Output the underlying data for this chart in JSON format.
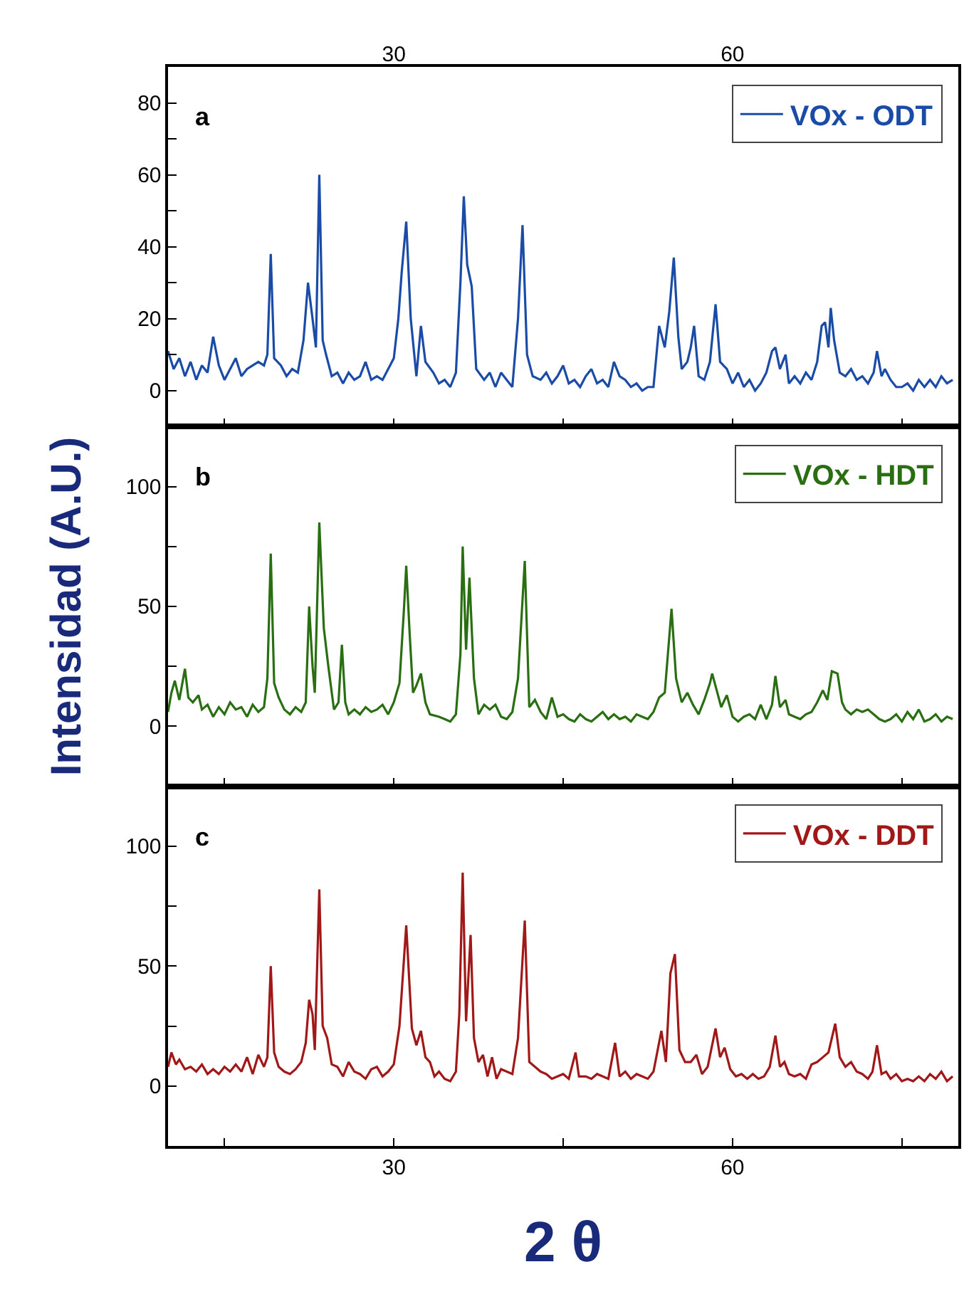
{
  "chart_data": [
    {
      "type": "line",
      "annotations": [
        "a"
      ],
      "legend": "top right",
      "grid": false,
      "tick_labels": "y",
      "xlim": [
        10,
        80
      ],
      "xticks": [
        {
          "value": 15,
          "label": null
        },
        {
          "value": 30,
          "label": null
        },
        {
          "value": 45,
          "label": null
        },
        {
          "value": 60,
          "label": null
        },
        {
          "value": 75,
          "label": null
        }
      ],
      "x2lim": [
        10,
        80
      ],
      "x2ticks": [
        30,
        60
      ],
      "ylim": [
        -10,
        90
      ],
      "yticks": [
        0,
        {
          "value": 10,
          "label": null
        },
        20,
        {
          "value": 30,
          "label": null
        },
        40,
        {
          "value": 50,
          "label": null
        },
        60,
        {
          "value": 70,
          "label": null
        },
        80
      ],
      "series": [
        {
          "name": "VOx - ODT",
          "color": "#1a4ba6",
          "x": [
            10,
            10.5,
            11,
            11.5,
            12,
            12.5,
            13,
            13.5,
            14,
            14.5,
            15,
            15.5,
            16,
            16.5,
            17,
            17.5,
            18,
            18.5,
            18.8,
            19.1,
            19.4,
            20,
            20.5,
            21,
            21.5,
            22,
            22.4,
            22.8,
            23.1,
            23.4,
            23.7,
            24,
            24.5,
            25,
            25.5,
            26,
            26.5,
            27,
            27.5,
            28,
            28.5,
            29,
            29.5,
            30,
            30.4,
            30.7,
            31.1,
            31.5,
            32,
            32.4,
            32.8,
            33.5,
            34,
            34.5,
            35,
            35.5,
            35.9,
            36.2,
            36.5,
            36.9,
            37.3,
            38,
            38.5,
            39,
            39.5,
            40,
            40.5,
            41,
            41.4,
            41.8,
            42.3,
            43,
            43.5,
            44,
            44.5,
            45,
            45.5,
            46,
            46.5,
            47,
            47.5,
            48,
            48.5,
            49,
            49.5,
            50,
            50.5,
            51,
            51.5,
            52,
            52.5,
            53,
            53.5,
            54,
            54.4,
            54.8,
            55.2,
            55.5,
            56,
            56.3,
            56.6,
            57,
            57.5,
            58,
            58.5,
            58.9,
            59.5,
            60,
            60.5,
            61,
            61.5,
            62,
            62.5,
            63,
            63.5,
            63.8,
            64.2,
            64.7,
            65,
            65.5,
            66,
            66.5,
            67,
            67.5,
            67.9,
            68.2,
            68.5,
            68.7,
            69,
            69.5,
            70,
            70.5,
            71,
            71.5,
            72,
            72.5,
            72.8,
            73.2,
            73.5,
            74,
            74.5,
            75,
            75.5,
            76,
            76.5,
            77,
            77.5,
            78,
            78.5,
            79,
            79.5
          ],
          "values": [
            11,
            6,
            9,
            4,
            8,
            3,
            7,
            5,
            15,
            7,
            3,
            6,
            9,
            4,
            6,
            7,
            8,
            7,
            10,
            38,
            9,
            7,
            4,
            6,
            5,
            14,
            30,
            20,
            12,
            60,
            14,
            10,
            4,
            5,
            2,
            5,
            3,
            4,
            8,
            3,
            4,
            3,
            6,
            9,
            20,
            33,
            47,
            20,
            4,
            18,
            8,
            5,
            2,
            3,
            1,
            5,
            30,
            54,
            35,
            29,
            6,
            3,
            5,
            1,
            5,
            3,
            1,
            20,
            46,
            10,
            4,
            3,
            5,
            2,
            4,
            7,
            2,
            3,
            1,
            4,
            6,
            2,
            3,
            1,
            8,
            4,
            3,
            1,
            2,
            0,
            1,
            1,
            18,
            12,
            22,
            37,
            15,
            6,
            8,
            12,
            18,
            4,
            3,
            8,
            24,
            8,
            6,
            2,
            5,
            1,
            3,
            0,
            2,
            5,
            11,
            12,
            6,
            10,
            2,
            4,
            2,
            5,
            3,
            8,
            18,
            19,
            12,
            23,
            14,
            5,
            4,
            6,
            3,
            4,
            2,
            5,
            11,
            4,
            6,
            3,
            1,
            1,
            2,
            0,
            3,
            1,
            3,
            1,
            4,
            2,
            3
          ]
        }
      ]
    },
    {
      "type": "line",
      "annotations": [
        "b"
      ],
      "legend": "top right",
      "grid": false,
      "tick_labels": "y",
      "ylabel": "Intensidad (A.U.)",
      "xlim": [
        10,
        80
      ],
      "xticks": [
        {
          "value": 15,
          "label": null
        },
        {
          "value": 30,
          "label": null
        },
        {
          "value": 45,
          "label": null
        },
        {
          "value": 60,
          "label": null
        },
        {
          "value": 75,
          "label": null
        }
      ],
      "ylim": [
        -25,
        125
      ],
      "yticks": [
        0,
        {
          "value": 25,
          "label": null
        },
        50,
        {
          "value": 75,
          "label": null
        },
        100
      ],
      "series": [
        {
          "name": "VOx - HDT",
          "color": "#2a6e12",
          "x": [
            10,
            10.3,
            10.6,
            11,
            11.5,
            11.8,
            12.2,
            12.7,
            13,
            13.5,
            14,
            14.5,
            15,
            15.5,
            16,
            16.5,
            17,
            17.5,
            18,
            18.5,
            18.8,
            19.1,
            19.4,
            19.8,
            20.3,
            20.8,
            21.3,
            21.8,
            22.2,
            22.5,
            22.8,
            23.0,
            23.4,
            23.8,
            24.2,
            24.7,
            25.1,
            25.4,
            25.7,
            26,
            26.5,
            27,
            27.5,
            28,
            28.5,
            29,
            29.5,
            30,
            30.5,
            30.9,
            31.1,
            31.4,
            31.7,
            32,
            32.4,
            32.8,
            33.2,
            34,
            34.5,
            35,
            35.5,
            35.9,
            36.1,
            36.4,
            36.7,
            37.1,
            37.5,
            38,
            38.5,
            39,
            39.5,
            40,
            40.5,
            41,
            41.6,
            42,
            42.5,
            43,
            43.5,
            44,
            44.5,
            45,
            45.5,
            46,
            46.5,
            47,
            47.5,
            48,
            48.5,
            49,
            49.5,
            50,
            50.5,
            51,
            51.5,
            52,
            52.5,
            53,
            53.5,
            54,
            54.6,
            55,
            55.5,
            56,
            56.5,
            57,
            57.5,
            58,
            58.2,
            58.6,
            59,
            59.5,
            60,
            60.5,
            61,
            61.5,
            62,
            62.5,
            63,
            63.5,
            63.8,
            64.2,
            64.7,
            65,
            65.5,
            66,
            66.5,
            67,
            67.5,
            68,
            68.4,
            68.8,
            69.3,
            69.7,
            70,
            70.5,
            71,
            71.5,
            72,
            72.5,
            73,
            73.5,
            74,
            74.5,
            75,
            75.5,
            76,
            76.5,
            77,
            77.5,
            78,
            78.5,
            79,
            79.5
          ],
          "values": [
            6,
            14,
            19,
            11,
            24,
            12,
            10,
            13,
            7,
            9,
            4,
            8,
            5,
            10,
            7,
            8,
            4,
            9,
            6,
            8,
            20,
            72,
            18,
            12,
            7,
            5,
            8,
            6,
            10,
            50,
            25,
            14,
            85,
            41,
            25,
            7,
            10,
            34,
            10,
            5,
            7,
            5,
            8,
            6,
            7,
            9,
            5,
            10,
            18,
            49,
            67,
            39,
            14,
            17,
            22,
            10,
            5,
            4,
            3,
            2,
            5,
            30,
            75,
            32,
            62,
            20,
            5,
            9,
            7,
            9,
            4,
            3,
            6,
            20,
            69,
            8,
            11,
            6,
            3,
            12,
            4,
            5,
            3,
            2,
            5,
            3,
            2,
            4,
            6,
            3,
            5,
            3,
            4,
            2,
            5,
            4,
            3,
            6,
            12,
            14,
            49,
            20,
            10,
            14,
            9,
            5,
            11,
            18,
            22,
            15,
            8,
            13,
            4,
            2,
            4,
            5,
            3,
            9,
            3,
            9,
            21,
            8,
            11,
            5,
            4,
            3,
            5,
            6,
            10,
            15,
            11,
            23,
            22,
            10,
            7,
            5,
            7,
            6,
            7,
            5,
            3,
            2,
            3,
            5,
            2,
            6,
            3,
            7,
            2,
            3,
            5,
            2,
            4,
            3
          ]
        }
      ]
    },
    {
      "type": "line",
      "annotations": [
        "c"
      ],
      "legend": "top right",
      "grid": false,
      "xlabel": "2 θ",
      "xlim": [
        10,
        80
      ],
      "xticks": [
        {
          "value": 15,
          "label": null
        },
        30,
        {
          "value": 45,
          "label": null
        },
        60,
        {
          "value": 75,
          "label": null
        }
      ],
      "ylim": [
        -25,
        125
      ],
      "yticks": [
        0,
        {
          "value": 25,
          "label": null
        },
        50,
        {
          "value": 75,
          "label": null
        },
        100
      ],
      "series": [
        {
          "name": "VOx - DDT",
          "color": "#a01818",
          "x": [
            10,
            10.3,
            10.7,
            11,
            11.5,
            12,
            12.5,
            13,
            13.5,
            14,
            14.5,
            15,
            15.5,
            16,
            16.5,
            17,
            17.5,
            18,
            18.5,
            18.8,
            19.1,
            19.4,
            19.8,
            20.3,
            20.8,
            21.3,
            21.8,
            22.2,
            22.5,
            22.8,
            23.0,
            23.4,
            23.7,
            24.1,
            24.5,
            25,
            25.5,
            26,
            26.5,
            27,
            27.5,
            28,
            28.5,
            29,
            29.5,
            30,
            30.5,
            31.1,
            31.6,
            32,
            32.4,
            32.8,
            33.2,
            33.6,
            34,
            34.5,
            35,
            35.5,
            35.8,
            36.1,
            36.4,
            36.8,
            37.1,
            37.5,
            37.9,
            38.3,
            38.7,
            39.1,
            39.5,
            40,
            40.5,
            41,
            41.6,
            42,
            42.5,
            43,
            43.5,
            44,
            44.5,
            45,
            45.5,
            46.1,
            46.4,
            47,
            47.5,
            48,
            48.5,
            49,
            49.6,
            50,
            50.5,
            51,
            51.5,
            52,
            52.5,
            53,
            53.7,
            54.1,
            54.5,
            54.9,
            55.3,
            55.8,
            56.3,
            56.8,
            57.3,
            57.8,
            58.5,
            58.9,
            59.3,
            59.8,
            60.3,
            60.8,
            61.3,
            61.8,
            62.3,
            62.8,
            63.3,
            63.8,
            64.2,
            64.6,
            65,
            65.5,
            66,
            66.5,
            67,
            67.5,
            68,
            68.5,
            69.1,
            69.5,
            70,
            70.5,
            71,
            71.5,
            72,
            72.4,
            72.8,
            73.2,
            73.6,
            74,
            74.5,
            75,
            75.5,
            76,
            76.5,
            77,
            77.5,
            78,
            78.5,
            79,
            79.5
          ],
          "values": [
            8,
            14,
            9,
            11,
            7,
            8,
            6,
            9,
            5,
            7,
            5,
            8,
            6,
            9,
            6,
            12,
            5,
            13,
            8,
            12,
            50,
            14,
            8,
            6,
            5,
            7,
            10,
            18,
            36,
            30,
            15,
            82,
            25,
            20,
            9,
            8,
            4,
            10,
            6,
            5,
            3,
            7,
            8,
            4,
            6,
            9,
            25,
            67,
            24,
            17,
            23,
            12,
            10,
            4,
            6,
            3,
            2,
            6,
            30,
            89,
            27,
            63,
            20,
            10,
            13,
            4,
            12,
            3,
            7,
            6,
            5,
            20,
            69,
            10,
            8,
            6,
            5,
            3,
            4,
            5,
            3,
            14,
            4,
            4,
            3,
            5,
            4,
            3,
            18,
            4,
            6,
            3,
            5,
            4,
            3,
            6,
            23,
            10,
            47,
            55,
            15,
            10,
            10,
            13,
            5,
            8,
            24,
            12,
            16,
            7,
            4,
            5,
            3,
            5,
            3,
            4,
            8,
            21,
            8,
            10,
            5,
            4,
            5,
            3,
            9,
            10,
            12,
            14,
            26,
            12,
            8,
            10,
            6,
            5,
            3,
            6,
            17,
            5,
            6,
            3,
            5,
            2,
            3,
            2,
            4,
            2,
            5,
            3,
            6,
            2,
            4
          ]
        }
      ]
    }
  ]
}
